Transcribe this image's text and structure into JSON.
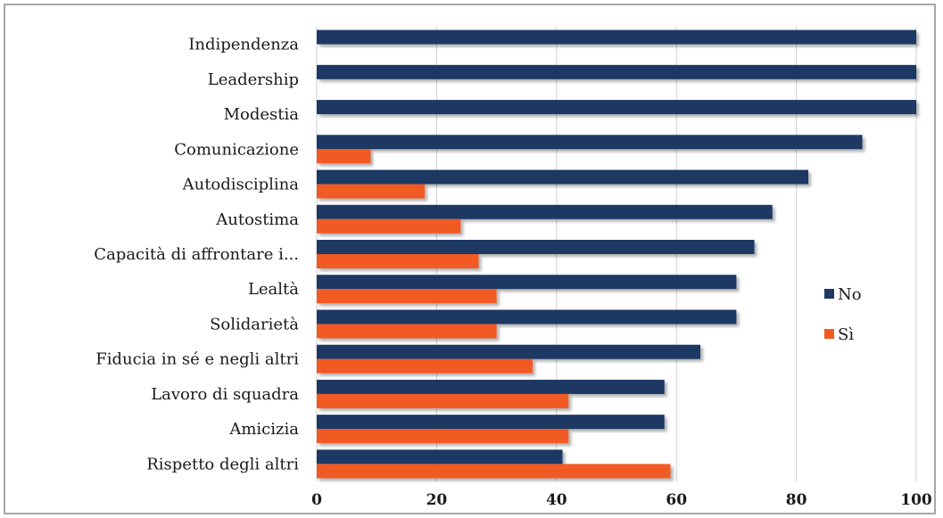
{
  "chart_data": {
    "type": "bar",
    "orientation": "horizontal",
    "categories": [
      "Indipendenza",
      "Leadership",
      "Modestia",
      "Comunicazione",
      "Autodisciplina",
      "Autostima",
      "Capacità di affrontare i...",
      "Lealtà",
      "Solidarietà",
      "Fiducia in sé e negli altri",
      "Lavoro di squadra",
      "Amicizia",
      "Rispetto degli altri"
    ],
    "series": [
      {
        "name": "No",
        "color": "#1f3864",
        "values": [
          100,
          100,
          100,
          91,
          82,
          76,
          73,
          70,
          70,
          64,
          58,
          58,
          41
        ]
      },
      {
        "name": "Sì",
        "color": "#f15a22",
        "values": [
          0,
          0,
          0,
          9,
          18,
          24,
          27,
          30,
          30,
          36,
          42,
          42,
          59
        ]
      }
    ],
    "xlim": [
      0,
      100
    ],
    "xticks": [
      "0",
      "20",
      "40",
      "60",
      "80",
      "100"
    ],
    "grid": true,
    "legend_position": "right"
  }
}
